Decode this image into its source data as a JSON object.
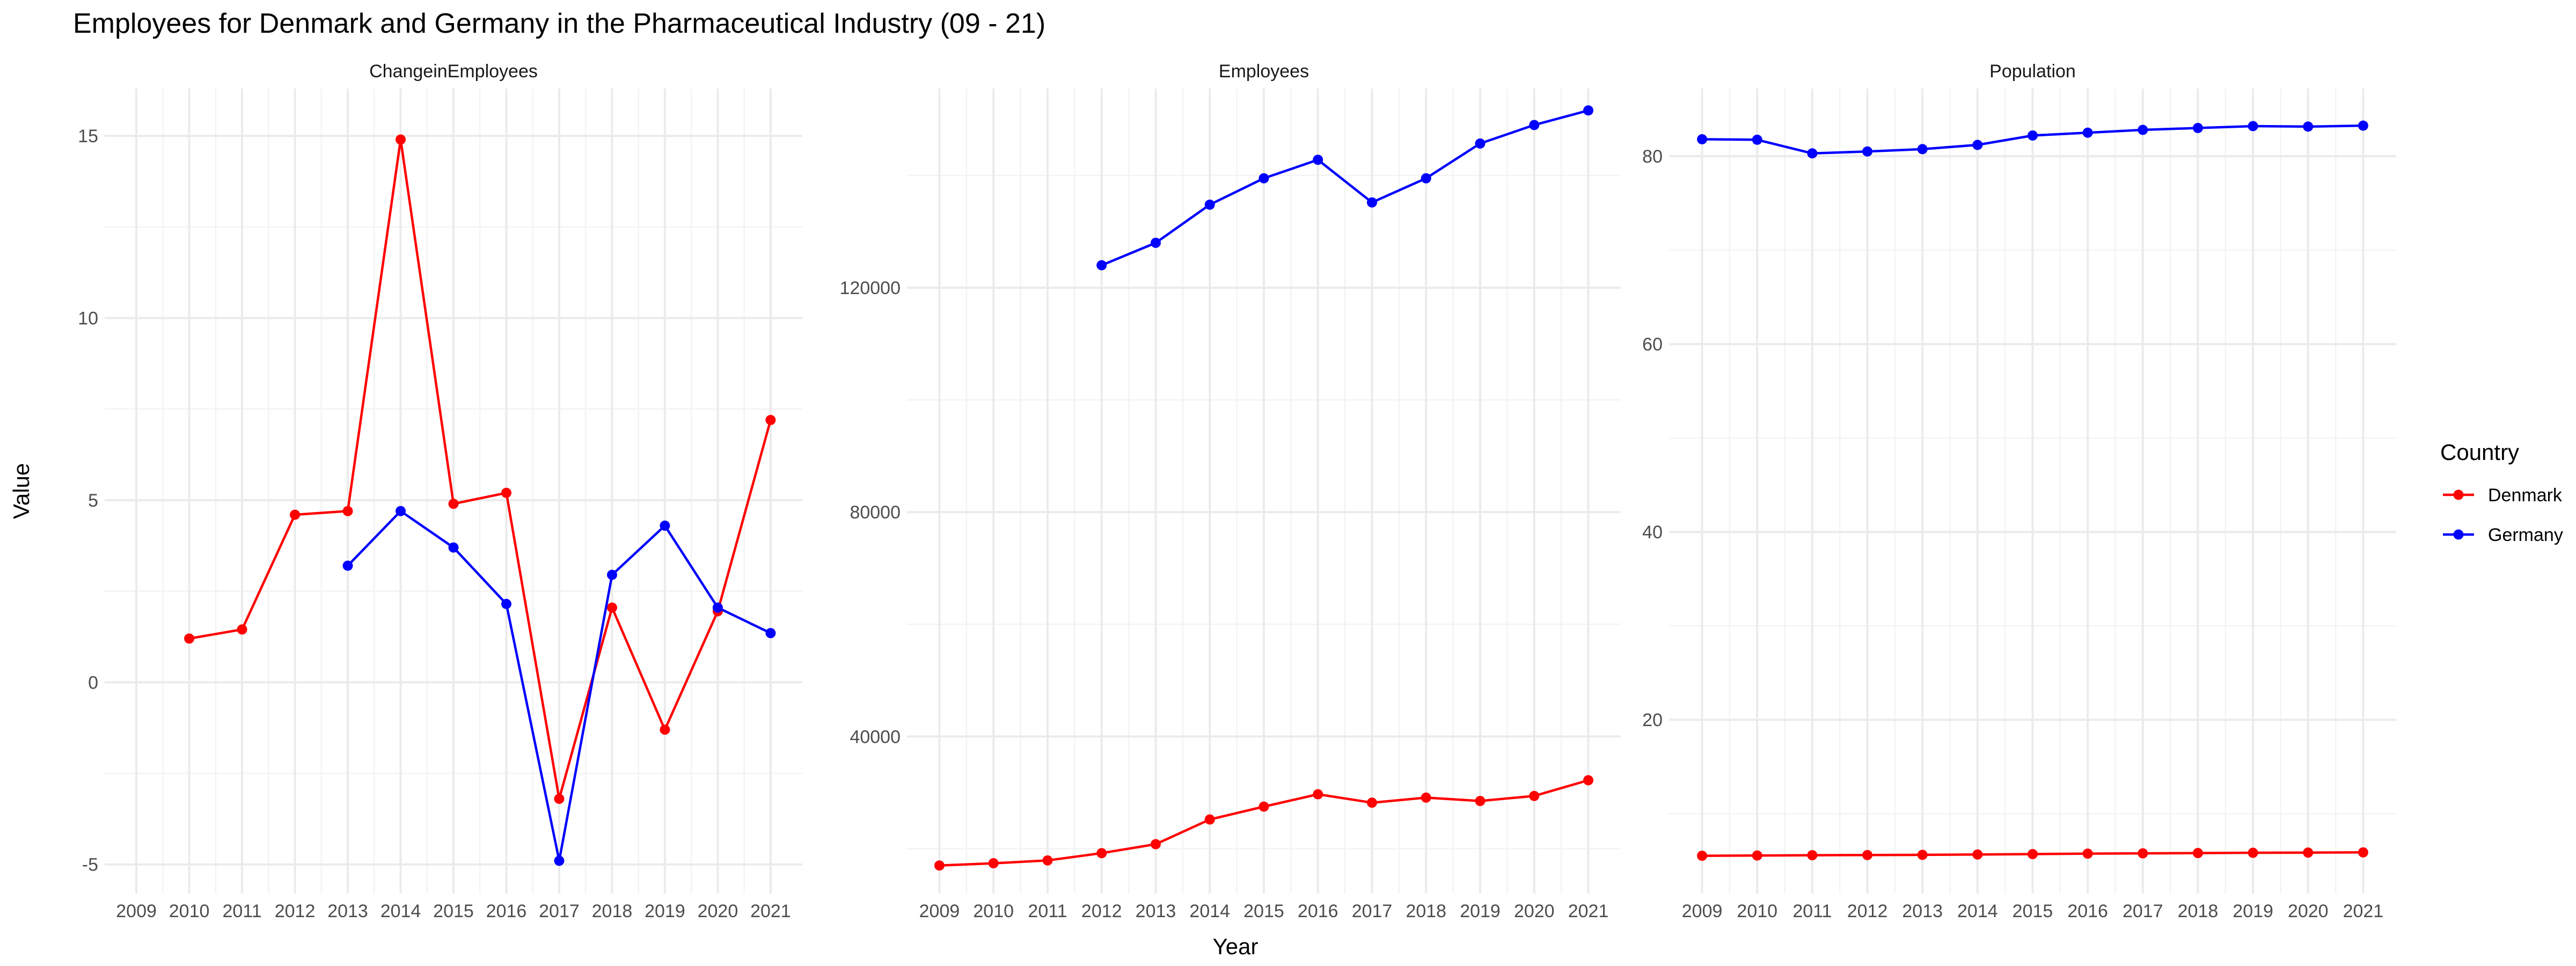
{
  "title": "Employees for Denmark and Germany in the Pharmaceutical Industry (09 - 21)",
  "chart_data": {
    "type": "line",
    "xlabel": "Year",
    "ylabel": "Value",
    "x": [
      2009,
      2010,
      2011,
      2012,
      2013,
      2014,
      2015,
      2016,
      2017,
      2018,
      2019,
      2020,
      2021
    ],
    "legend": {
      "title": "Country",
      "placement": "right",
      "entries": [
        {
          "name": "Denmark",
          "color": "#ff0000"
        },
        {
          "name": "Germany",
          "color": "#0000ff"
        }
      ]
    },
    "facets": [
      {
        "name": "ChangeinEmployees",
        "ylim": [
          -5.8,
          16.3
        ],
        "yticks": [
          -5,
          0,
          5,
          10,
          15
        ],
        "ytick_labels": [
          "-5",
          "0",
          "5",
          "10",
          "15"
        ],
        "series": [
          {
            "name": "Denmark",
            "color": "#ff0000",
            "values": [
              null,
              1.2,
              1.45,
              4.6,
              4.7,
              14.9,
              4.9,
              5.2,
              -3.2,
              2.05,
              -1.3,
              1.95,
              7.2
            ]
          },
          {
            "name": "Germany",
            "color": "#0000ff",
            "values": [
              null,
              null,
              null,
              null,
              3.2,
              4.7,
              3.7,
              2.15,
              -4.9,
              2.95,
              4.3,
              2.05,
              1.35
            ]
          }
        ]
      },
      {
        "name": "Employees",
        "ylim": [
          12000,
          155500
        ],
        "yticks": [
          40000,
          80000,
          120000
        ],
        "ytick_labels": [
          "40000",
          "80000",
          "120000"
        ],
        "series": [
          {
            "name": "Denmark",
            "color": "#ff0000",
            "values": [
              17000,
              17400,
              17900,
              19200,
              20800,
              25200,
              27500,
              29700,
              28200,
              29100,
              28500,
              29400,
              32200
            ]
          },
          {
            "name": "Germany",
            "color": "#0000ff",
            "values": [
              null,
              null,
              null,
              124000,
              128000,
              134800,
              139500,
              142800,
              135200,
              139500,
              145700,
              149000,
              151600
            ]
          }
        ]
      },
      {
        "name": "Population",
        "ylim": [
          1.5,
          87.2
        ],
        "yticks": [
          20,
          40,
          60,
          80
        ],
        "ytick_labels": [
          "20",
          "40",
          "60",
          "80"
        ],
        "series": [
          {
            "name": "Denmark",
            "color": "#ff0000",
            "values": [
              5.52,
              5.55,
              5.58,
              5.6,
              5.62,
              5.66,
              5.7,
              5.75,
              5.78,
              5.81,
              5.84,
              5.86,
              5.88
            ]
          },
          {
            "name": "Germany",
            "color": "#0000ff",
            "values": [
              81.8,
              81.75,
              80.3,
              80.5,
              80.75,
              81.2,
              82.2,
              82.5,
              82.8,
              83.0,
              83.2,
              83.15,
              83.25
            ]
          }
        ]
      }
    ]
  }
}
